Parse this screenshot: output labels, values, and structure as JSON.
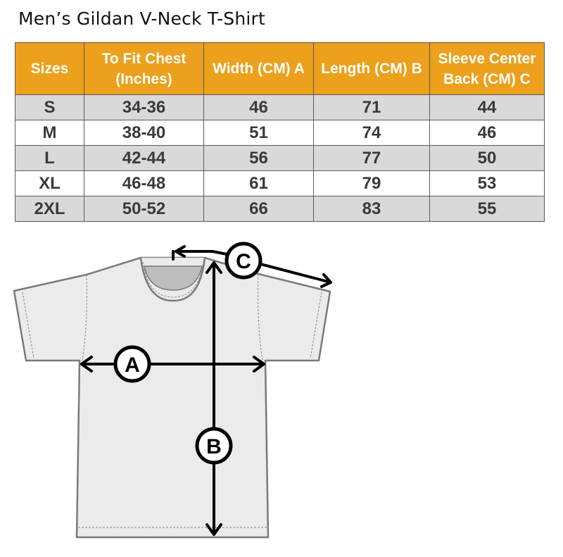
{
  "title": "Men’s Gildan V-Neck T-Shirt",
  "table": {
    "headers": [
      "Sizes",
      "To Fit Chest (Inches)",
      "Width (CM) A",
      "Length  (CM) B",
      "Sleeve Center Back (CM) C"
    ],
    "rows": [
      [
        "S",
        "34-36",
        "46",
        "71",
        "44"
      ],
      [
        "M",
        "38-40",
        "51",
        "74",
        "46"
      ],
      [
        "L",
        "42-44",
        "56",
        "77",
        "50"
      ],
      [
        "XL",
        "46-48",
        "61",
        "79",
        "53"
      ],
      [
        "2XL",
        "50-52",
        "66",
        "83",
        "55"
      ]
    ]
  },
  "diagram": {
    "label_a": "A",
    "label_b": "B",
    "label_c": "C"
  },
  "colors": {
    "header": "#eca01b",
    "row_alt": "#d9d9d9",
    "shirt": "#ebebeb"
  }
}
